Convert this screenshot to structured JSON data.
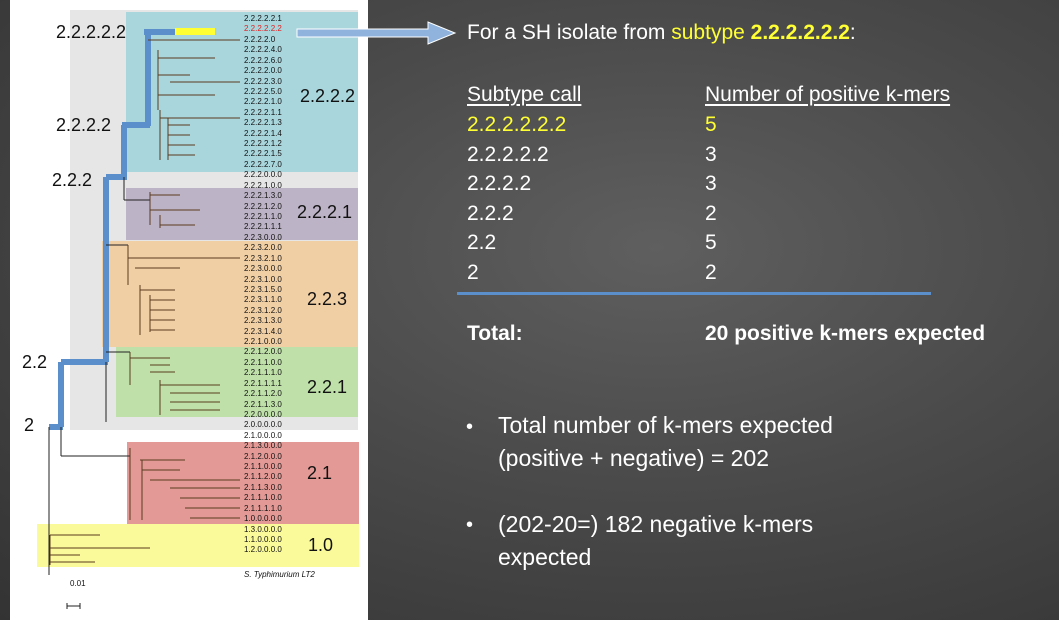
{
  "tree": {
    "scale_label": "0.01",
    "clade_labels": [
      "2.2.2.2.2",
      "2.2.2.2",
      "2.2.2",
      "2.2",
      "2",
      "2.2.2.2",
      "2.2.2.1",
      "2.2.3",
      "2.2.1",
      "2.1",
      "1.0"
    ],
    "leaves": [
      "2.2.2.2.2.1",
      "2.2.2.2.2.2",
      "2.2.2.2.0",
      "2.2.2.2.4.0",
      "2.2.2.2.6.0",
      "2.2.2.2.0.0",
      "2.2.2.2.3.0",
      "2.2.2.2.5.0",
      "2.2.2.2.1.0",
      "2.2.2.2.1.1",
      "2.2.2.2.1.3",
      "2.2.2.2.1.4",
      "2.2.2.2.1.2",
      "2.2.2.2.1.5",
      "2.2.2.2.7.0",
      "2.2.2.0.0.0",
      "2.2.2.1.0.0",
      "2.2.2.1.3.0",
      "2.2.2.1.2.0",
      "2.2.2.1.1.0",
      "2.2.2.1.1.1",
      "2.2.3.0.0.0",
      "2.2.3.2.0.0",
      "2.2.3.2.1.0",
      "2.2.3.0.0.0",
      "2.2.3.1.0.0",
      "2.2.3.1.5.0",
      "2.2.3.1.1.0",
      "2.2.3.1.2.0",
      "2.2.3.1.3.0",
      "2.2.3.1.4.0",
      "2.2.1.0.0.0",
      "2.2.1.2.0.0",
      "2.2.1.1.0.0",
      "2.2.1.1.1.0",
      "2.2.1.1.1.1",
      "2.2.1.1.2.0",
      "2.2.1.1.3.0",
      "2.2.0.0.0.0",
      "2.0.0.0.0.0",
      "2.1.0.0.0.0",
      "2.1.3.0.0.0",
      "2.1.2.0.0.0",
      "2.1.1.0.0.0",
      "2.1.1.2.0.0",
      "2.1.1.3.0.0",
      "2.1.1.1.0.0",
      "2.1.1.1.1.0",
      "1.0.0.0.0.0",
      "1.3.0.0.0.0",
      "1.1.0.0.0.0",
      "1.2.0.0.0.0",
      "S. Typhimurium LT2"
    ],
    "highlighted_leaf": "2.2.2.2.2.2"
  },
  "heading": {
    "prefix": "For a SH isolate from",
    "subtype_word": "subtype",
    "subtype_value": "2.2.2.2.2.2",
    "suffix": ":"
  },
  "table": {
    "col1_header": "Subtype call",
    "col2_header": "Number of positive k-mers",
    "rows": [
      {
        "call": "2.2.2.2.2.2",
        "count": "5"
      },
      {
        "call": "2.2.2.2.2",
        "count": "3"
      },
      {
        "call": "2.2.2.2",
        "count": "3"
      },
      {
        "call": "2.2.2",
        "count": "2"
      },
      {
        "call": "2.2",
        "count": "5"
      },
      {
        "call": "2",
        "count": "2"
      }
    ],
    "total_label": "Total:",
    "total_value": "20 positive k-mers expected"
  },
  "bullets": {
    "b1_line1": "Total number of k-mers expected",
    "b1_line2": "(positive + negative) = 202",
    "b2_line1": "(202-20=) 182 negative k-mers",
    "b2_line2": "expected"
  },
  "colors": {
    "clade_teal": "#a9d5dc",
    "clade_purple": "#bdb3c6",
    "clade_orange": "#f1cfa5",
    "clade_green": "#bfe0a9",
    "clade_red": "#e39a96",
    "clade_yellow": "#fafa9a",
    "highlight_yellow": "#ffff33",
    "path_blue": "#5b8fcc",
    "rule_blue": "#5b8fcc"
  }
}
